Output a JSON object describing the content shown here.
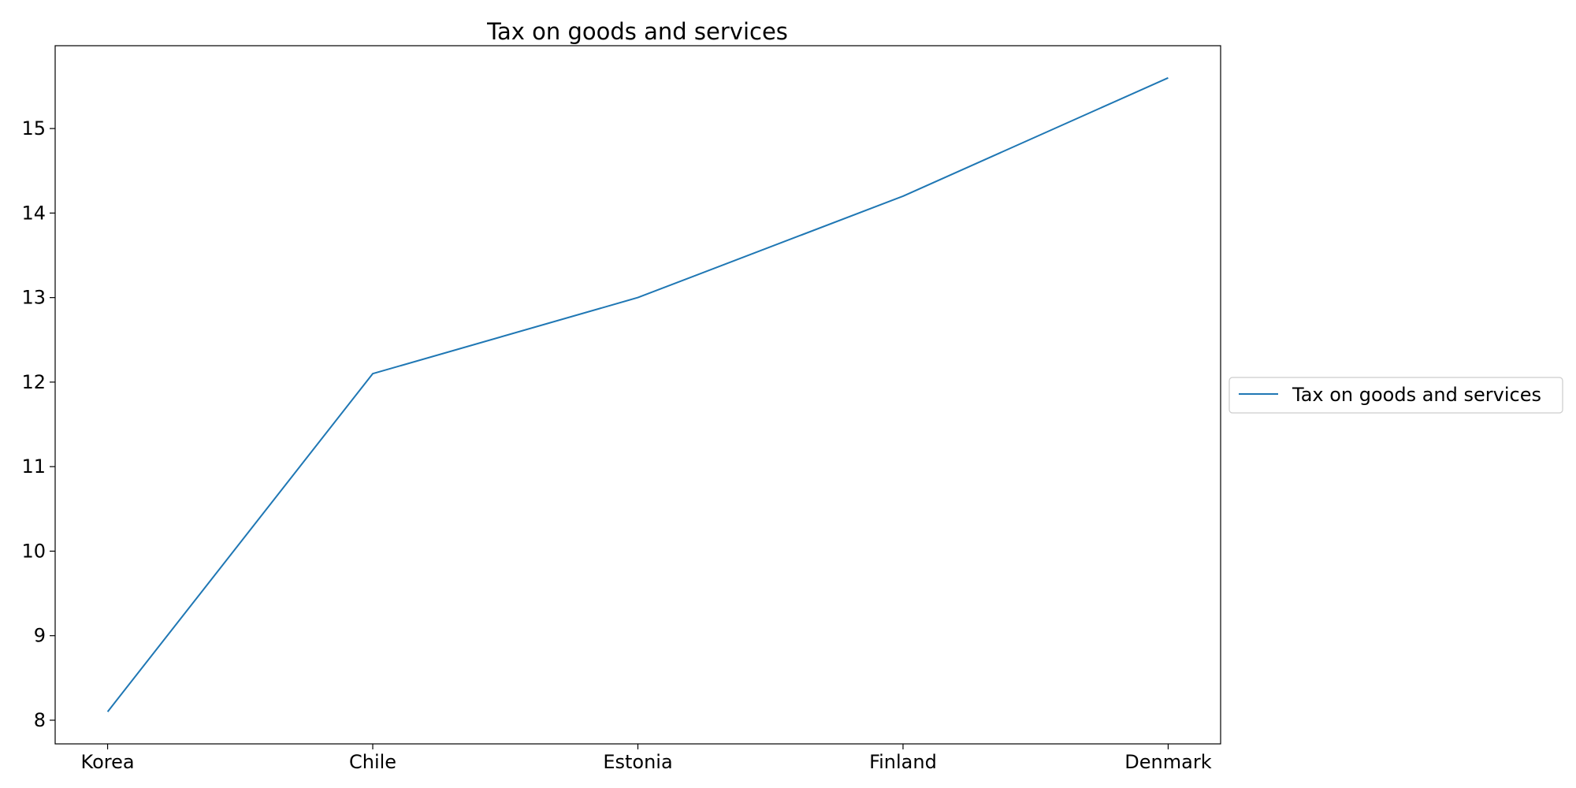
{
  "chart_data": {
    "type": "line",
    "title": "Tax on goods and services",
    "xlabel": "",
    "ylabel": "",
    "categories": [
      "Korea",
      "Chile",
      "Estonia",
      "Finland",
      "Denmark"
    ],
    "series": [
      {
        "name": "Tax on goods and services",
        "values": [
          8.1,
          12.1,
          13.0,
          14.2,
          15.6
        ],
        "color": "#1f77b4"
      }
    ],
    "ylim": [
      7.72,
      15.98
    ],
    "yticks": [
      8,
      9,
      10,
      11,
      12,
      13,
      14,
      15
    ],
    "grid": false,
    "legend_position": "center-right outside"
  }
}
